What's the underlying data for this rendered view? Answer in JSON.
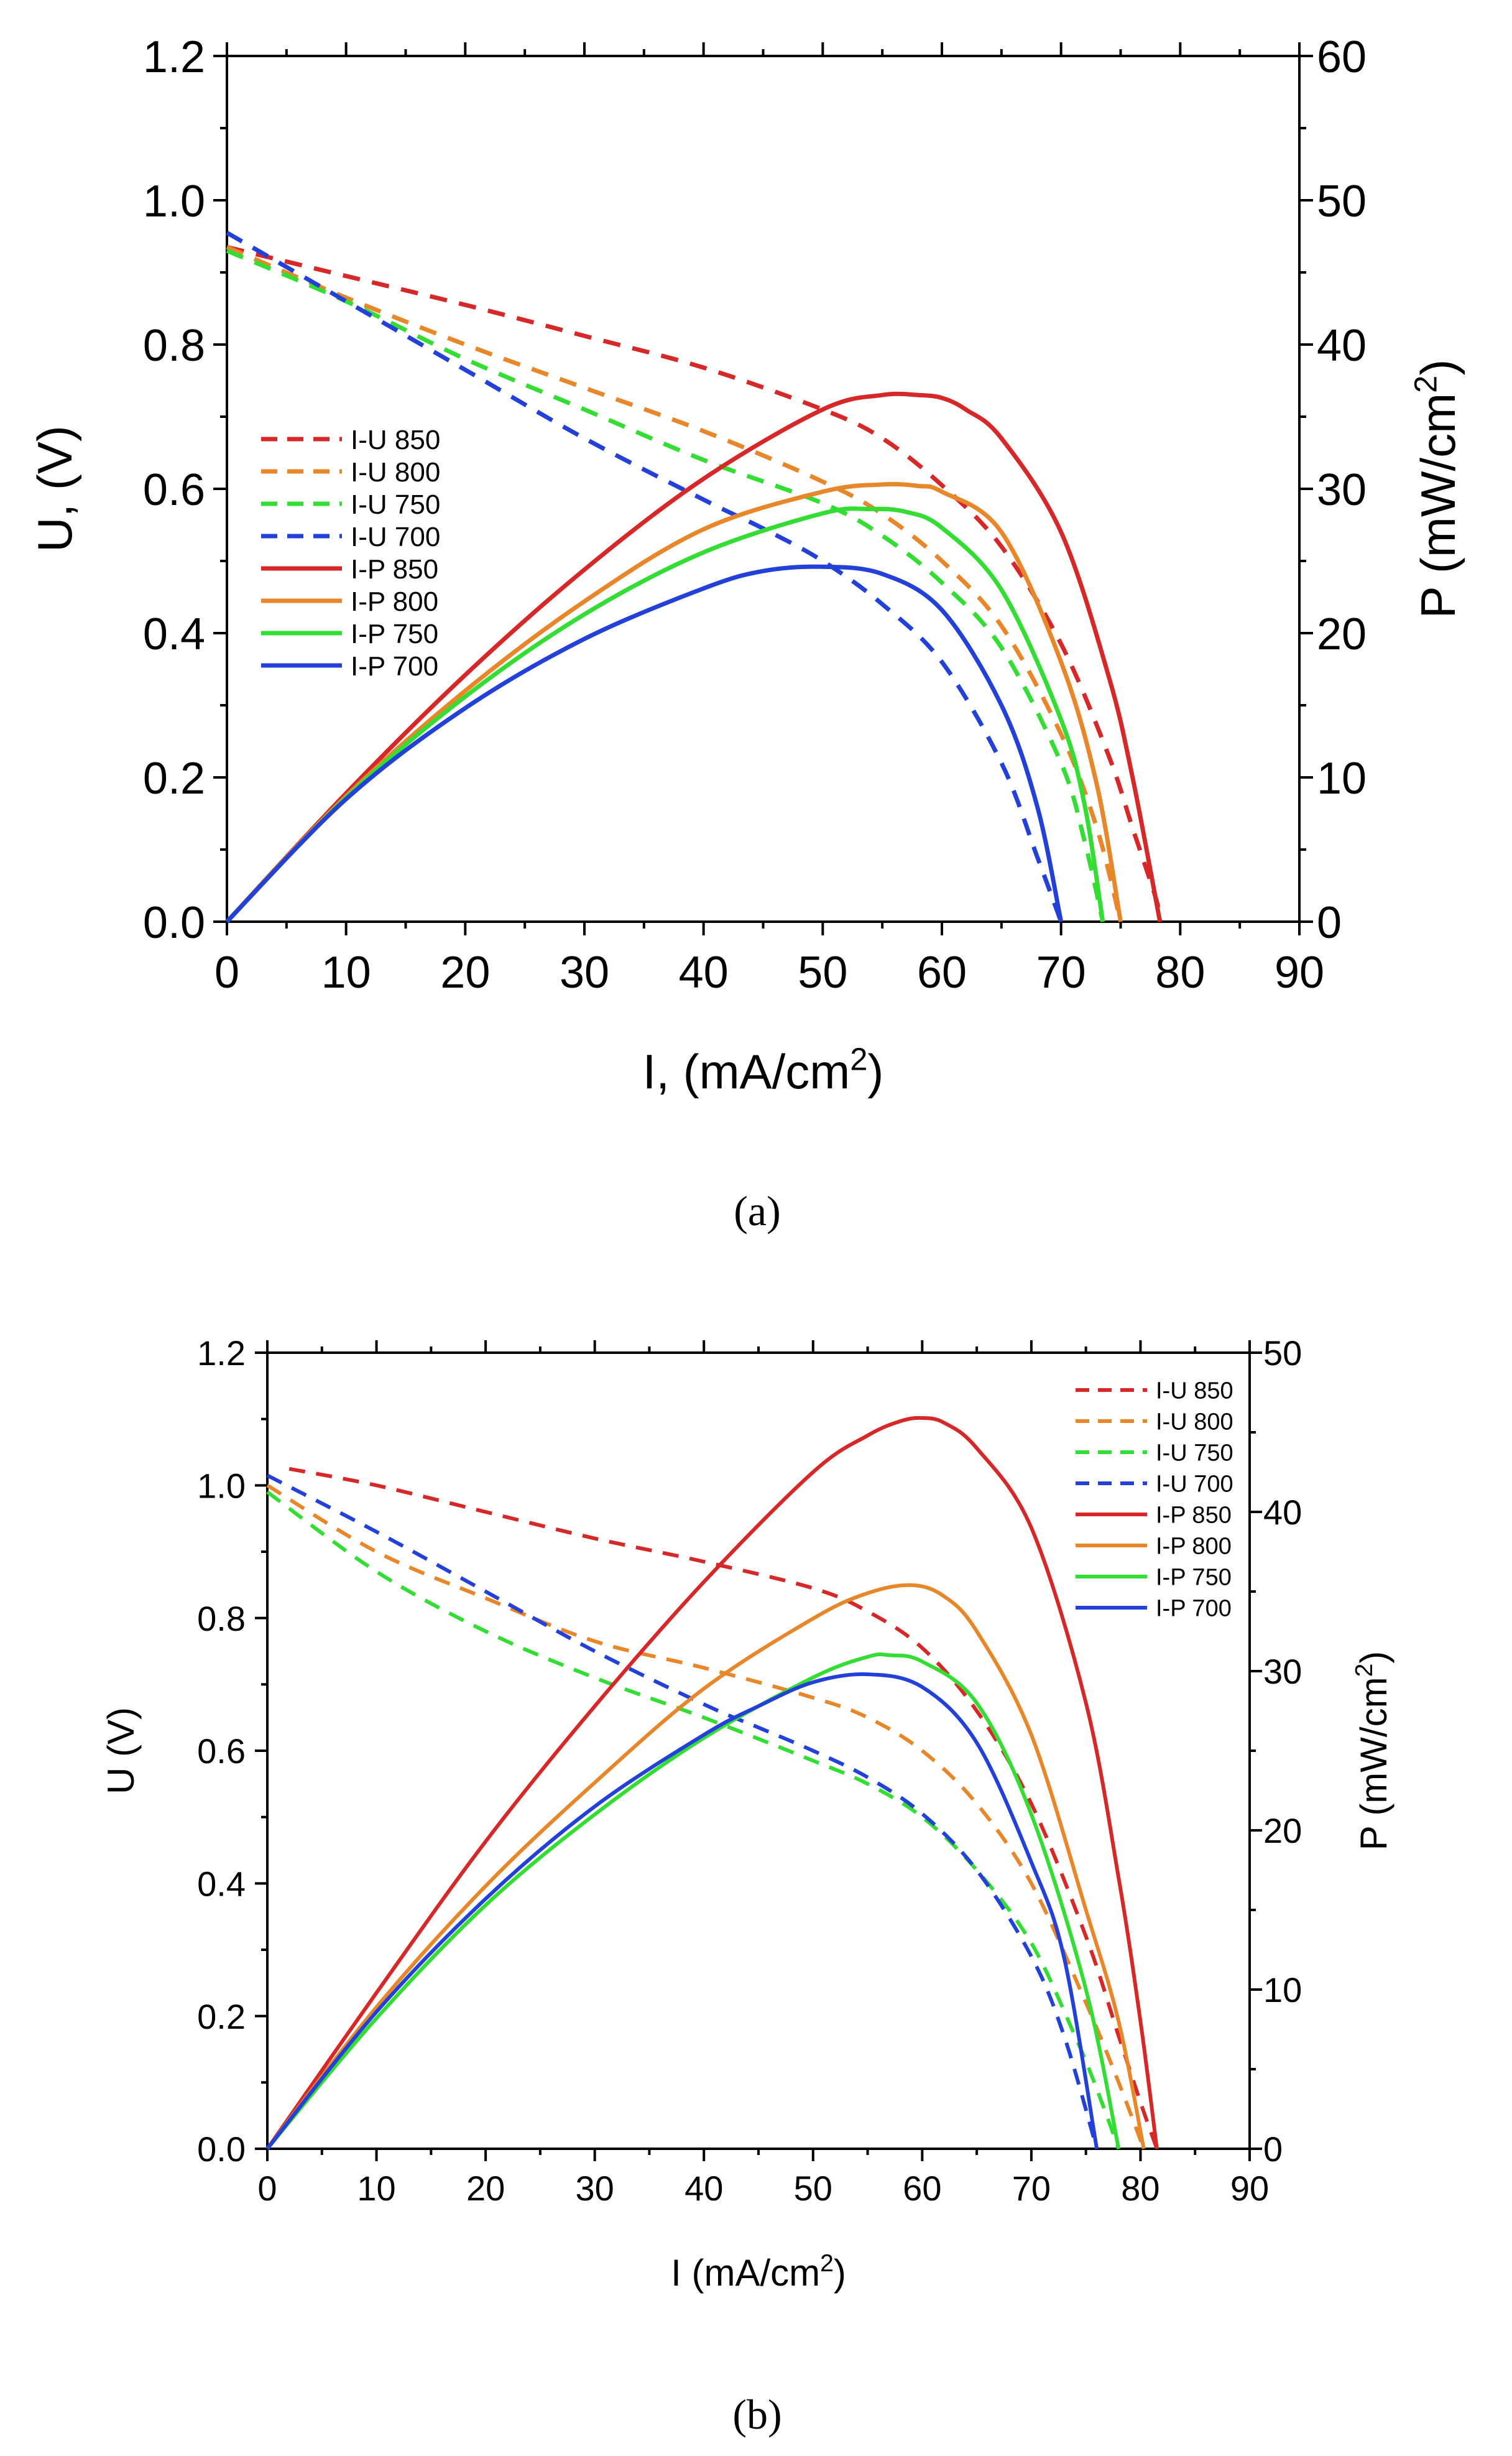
{
  "chart_data": [
    {
      "panel_label": "(a)",
      "type": "line",
      "xlabel": "I, (mA/cm",
      "xlabel_sup": "2",
      "xlabel_end": ")",
      "ylabel_left": "U, (V)",
      "ylabel_right": "P (mW/cm",
      "ylabel_right_sup": "2",
      "ylabel_right_end": ")",
      "xlim": [
        0,
        90
      ],
      "ylim_left": [
        0,
        1.2
      ],
      "ylim_right": [
        0,
        60
      ],
      "xticks": [
        "0",
        "10",
        "20",
        "30",
        "40",
        "50",
        "60",
        "70",
        "80",
        "90"
      ],
      "yticks_left": [
        "0.0",
        "0.2",
        "0.4",
        "0.6",
        "0.8",
        "1.0",
        "1.2"
      ],
      "yticks_right": [
        "0",
        "10",
        "20",
        "30",
        "40",
        "50",
        "60"
      ],
      "legend_position": "left",
      "series": [
        {
          "name": "I-U 850",
          "axis": "left",
          "style": "dashed",
          "color": "#d62828",
          "x": [
            0,
            10,
            20,
            30,
            40,
            50,
            55,
            60,
            65,
            70,
            74,
            76,
            78,
            78.3
          ],
          "y": [
            0.935,
            0.895,
            0.855,
            0.812,
            0.768,
            0.71,
            0.67,
            0.605,
            0.52,
            0.385,
            0.23,
            0.13,
            0.03,
            0
          ]
        },
        {
          "name": "I-U 800",
          "axis": "left",
          "style": "dashed",
          "color": "#e8862a",
          "x": [
            0,
            10,
            20,
            30,
            40,
            50,
            55,
            60,
            65,
            70,
            73,
            75
          ],
          "y": [
            0.935,
            0.865,
            0.8,
            0.74,
            0.68,
            0.61,
            0.565,
            0.5,
            0.41,
            0.26,
            0.13,
            0
          ]
        },
        {
          "name": "I-U 750",
          "axis": "left",
          "style": "dashed",
          "color": "#33dd33",
          "x": [
            0,
            10,
            20,
            30,
            40,
            50,
            55,
            60,
            65,
            70,
            72,
            73.5
          ],
          "y": [
            0.93,
            0.86,
            0.78,
            0.71,
            0.64,
            0.58,
            0.535,
            0.47,
            0.38,
            0.22,
            0.11,
            0
          ]
        },
        {
          "name": "I-U 700",
          "axis": "left",
          "style": "dashed",
          "color": "#2340d8",
          "x": [
            0,
            10,
            20,
            30,
            40,
            45,
            50,
            55,
            60,
            65,
            68,
            70
          ],
          "y": [
            0.955,
            0.86,
            0.765,
            0.67,
            0.585,
            0.545,
            0.5,
            0.44,
            0.36,
            0.22,
            0.09,
            0
          ]
        },
        {
          "name": "I-P 850",
          "axis": "right",
          "style": "solid",
          "color": "#d62828",
          "x": [
            0,
            10,
            20,
            30,
            40,
            50,
            55,
            58,
            60,
            62,
            65,
            70,
            74,
            76,
            78.3
          ],
          "y": [
            0,
            8.9,
            17.1,
            24.4,
            30.7,
            35.5,
            36.5,
            36.5,
            36.3,
            35.5,
            33.5,
            27,
            17,
            10,
            0
          ]
        },
        {
          "name": "I-P 800",
          "axis": "right",
          "style": "solid",
          "color": "#e8862a",
          "x": [
            0,
            10,
            20,
            30,
            40,
            50,
            55,
            58,
            60,
            65,
            70,
            73,
            75
          ],
          "y": [
            0,
            8.7,
            16,
            22.2,
            27.2,
            29.8,
            30.3,
            30.2,
            29.8,
            27,
            18,
            9.5,
            0
          ]
        },
        {
          "name": "I-P 750",
          "axis": "right",
          "style": "solid",
          "color": "#33dd33",
          "x": [
            0,
            10,
            20,
            30,
            40,
            50,
            54,
            57,
            60,
            65,
            70,
            72,
            73.5
          ],
          "y": [
            0,
            8.6,
            15.6,
            21.3,
            25.6,
            28.3,
            28.6,
            28.4,
            27.3,
            23,
            14,
            8,
            0
          ]
        },
        {
          "name": "I-P 700",
          "axis": "right",
          "style": "solid",
          "color": "#2340d8",
          "x": [
            0,
            10,
            20,
            30,
            40,
            45,
            50,
            55,
            60,
            65,
            68,
            70
          ],
          "y": [
            0,
            8.5,
            14.8,
            19.6,
            23.1,
            24.3,
            24.6,
            24.1,
            21.6,
            15,
            8,
            0
          ]
        }
      ]
    },
    {
      "panel_label": "(b)",
      "type": "line",
      "xlabel": "I (mA/cm",
      "xlabel_sup": "2",
      "xlabel_end": ")",
      "ylabel_left": "U (V)",
      "ylabel_right": "P (mW/cm",
      "ylabel_right_sup": "2",
      "ylabel_right_end": ")",
      "xlim": [
        0,
        90
      ],
      "ylim_left": [
        0,
        1.2
      ],
      "ylim_right": [
        0,
        50
      ],
      "xticks": [
        "0",
        "10",
        "20",
        "30",
        "40",
        "50",
        "60",
        "70",
        "80",
        "90"
      ],
      "yticks_left": [
        "0.0",
        "0.2",
        "0.4",
        "0.6",
        "0.8",
        "1.0",
        "1.2"
      ],
      "yticks_right": [
        "0",
        "10",
        "20",
        "30",
        "40",
        "50"
      ],
      "legend_position": "top-right",
      "series": [
        {
          "name": "I-U 850",
          "axis": "left",
          "style": "dashed",
          "color": "#d62828",
          "x": [
            2,
            10,
            20,
            30,
            40,
            50,
            55,
            60,
            65,
            70,
            75,
            78,
            80,
            81.5
          ],
          "y": [
            1.025,
            1.0,
            0.96,
            0.92,
            0.885,
            0.845,
            0.81,
            0.755,
            0.66,
            0.52,
            0.32,
            0.17,
            0.07,
            0
          ]
        },
        {
          "name": "I-U 800",
          "axis": "left",
          "style": "dashed",
          "color": "#e8862a",
          "x": [
            0,
            10,
            20,
            30,
            40,
            50,
            55,
            60,
            65,
            70,
            75,
            78,
            80.3
          ],
          "y": [
            1.0,
            0.9,
            0.83,
            0.765,
            0.725,
            0.68,
            0.65,
            0.6,
            0.52,
            0.4,
            0.22,
            0.1,
            0
          ]
        },
        {
          "name": "I-U 750",
          "axis": "left",
          "style": "dashed",
          "color": "#33dd33",
          "x": [
            0,
            10,
            20,
            30,
            40,
            50,
            55,
            60,
            65,
            70,
            74,
            76,
            78
          ],
          "y": [
            0.99,
            0.87,
            0.78,
            0.71,
            0.65,
            0.585,
            0.55,
            0.5,
            0.42,
            0.31,
            0.17,
            0.09,
            0
          ]
        },
        {
          "name": "I-U 700",
          "axis": "left",
          "style": "dashed",
          "color": "#2340d8",
          "x": [
            0,
            10,
            20,
            30,
            40,
            45,
            50,
            55,
            60,
            65,
            70,
            73,
            76
          ],
          "y": [
            1.015,
            0.93,
            0.84,
            0.75,
            0.67,
            0.635,
            0.6,
            0.56,
            0.505,
            0.42,
            0.29,
            0.17,
            0
          ]
        },
        {
          "name": "I-P 850",
          "axis": "right",
          "style": "solid",
          "color": "#d62828",
          "x": [
            0,
            10,
            20,
            30,
            40,
            50,
            55,
            58,
            60,
            62,
            65,
            70,
            75,
            78,
            80,
            81.5
          ],
          "y": [
            0,
            9.8,
            19.3,
            27.8,
            35.6,
            42.5,
            44.8,
            45.7,
            45.9,
            45.6,
            44,
            39,
            28,
            17,
            8,
            0
          ]
        },
        {
          "name": "I-P 800",
          "axis": "right",
          "style": "solid",
          "color": "#e8862a",
          "x": [
            0,
            10,
            20,
            30,
            40,
            50,
            55,
            59,
            62,
            65,
            70,
            75,
            78,
            80.3
          ],
          "y": [
            0,
            8.9,
            16.5,
            23,
            28.9,
            33.3,
            34.9,
            35.4,
            34.7,
            32.5,
            26,
            15,
            8,
            0
          ]
        },
        {
          "name": "I-P 750",
          "axis": "right",
          "style": "solid",
          "color": "#33dd33",
          "x": [
            0,
            10,
            20,
            30,
            40,
            50,
            55,
            57,
            60,
            65,
            70,
            75,
            78
          ],
          "y": [
            0,
            8.2,
            15.3,
            21,
            25.8,
            29.6,
            30.9,
            31,
            30.6,
            28,
            21,
            10,
            0
          ]
        },
        {
          "name": "I-P 700",
          "axis": "right",
          "style": "solid",
          "color": "#2340d8",
          "x": [
            0,
            10,
            20,
            30,
            40,
            45,
            50,
            55,
            60,
            65,
            70,
            73,
            76
          ],
          "y": [
            0,
            8.6,
            15.7,
            21.5,
            26,
            27.8,
            29.3,
            29.8,
            29,
            25.5,
            18,
            12,
            0
          ]
        }
      ]
    }
  ]
}
